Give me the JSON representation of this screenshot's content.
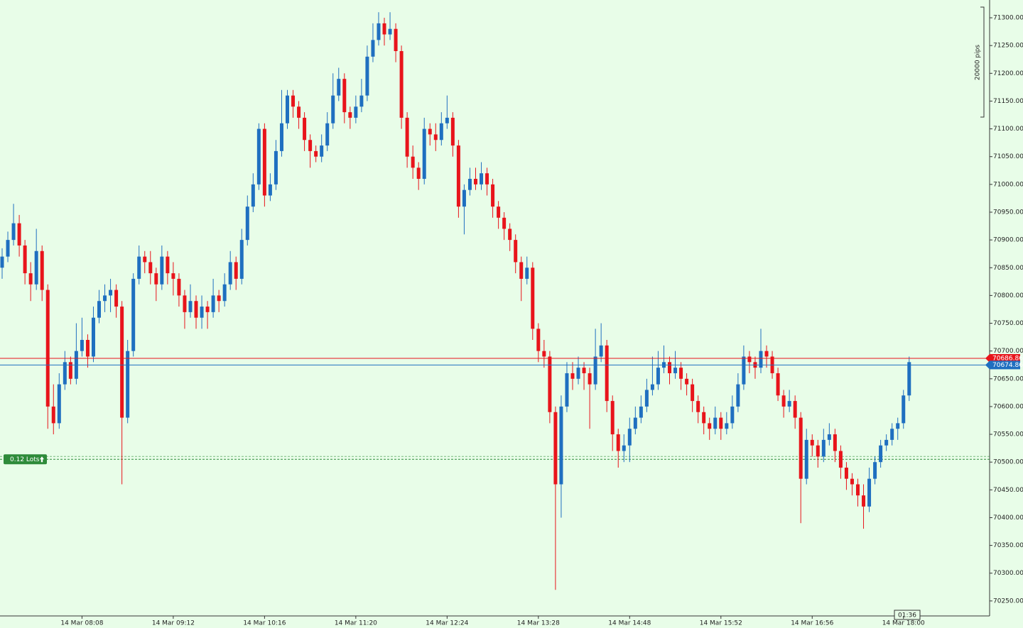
{
  "chart_data": {
    "type": "candlestick",
    "ylim": [
      70223,
      71332
    ],
    "yticks": [
      {
        "value": 70250,
        "label": "70250.00"
      },
      {
        "value": 70300,
        "label": "70300.00"
      },
      {
        "value": 70350,
        "label": "70350.00"
      },
      {
        "value": 70400,
        "label": "70400.00"
      },
      {
        "value": 70450,
        "label": "70450.00"
      },
      {
        "value": 70500,
        "label": "70500.00"
      },
      {
        "value": 70550,
        "label": "70550.00"
      },
      {
        "value": 70600,
        "label": "70600.00"
      },
      {
        "value": 70650,
        "label": "70650.00"
      },
      {
        "value": 70700,
        "label": "70700.00"
      },
      {
        "value": 70750,
        "label": "70750.00"
      },
      {
        "value": 70800,
        "label": "70800.00"
      },
      {
        "value": 70850,
        "label": "70850.00"
      },
      {
        "value": 70900,
        "label": "70900.00"
      },
      {
        "value": 70950,
        "label": "70950.00"
      },
      {
        "value": 71000,
        "label": "71000.00"
      },
      {
        "value": 71050,
        "label": "71050.00"
      },
      {
        "value": 71100,
        "label": "71100.00"
      },
      {
        "value": 71150,
        "label": "71150.00"
      },
      {
        "value": 71200,
        "label": "71200.00"
      },
      {
        "value": 71250,
        "label": "71250.00"
      },
      {
        "value": 71300,
        "label": "71300.00"
      }
    ],
    "up_color": "#1f6fc0",
    "down_color": "#e8141b",
    "categories": [
      null,
      null,
      null,
      null,
      null,
      null,
      null,
      null,
      null,
      null,
      null,
      null,
      null,
      null,
      "14 Mar 08:08",
      null,
      null,
      null,
      null,
      null,
      null,
      null,
      null,
      null,
      null,
      null,
      null,
      null,
      null,
      null,
      "14 Mar 09:12",
      null,
      null,
      null,
      null,
      null,
      null,
      null,
      null,
      null,
      null,
      null,
      null,
      null,
      null,
      null,
      "14 Mar 10:16",
      null,
      null,
      null,
      null,
      null,
      null,
      null,
      null,
      null,
      null,
      null,
      null,
      null,
      null,
      null,
      "14 Mar 11:20",
      null,
      null,
      null,
      null,
      null,
      null,
      null,
      null,
      null,
      null,
      null,
      null,
      null,
      null,
      null,
      "14 Mar 12:24",
      null,
      null,
      null,
      null,
      null,
      null,
      null,
      null,
      null,
      null,
      null,
      null,
      null,
      null,
      null,
      "14 Mar 13:28",
      null,
      null,
      null,
      null,
      null,
      null,
      null,
      null,
      null,
      null,
      null,
      null,
      null,
      null,
      null,
      "14 Mar 14:48",
      null,
      null,
      null,
      null,
      null,
      null,
      null,
      null,
      null,
      null,
      null,
      null,
      null,
      null,
      null,
      "14 Mar 15:52",
      null,
      null,
      null,
      null,
      null,
      null,
      null,
      null,
      null,
      null,
      null,
      null,
      null,
      null,
      null,
      "14 Mar 16:56",
      null,
      null,
      null,
      null,
      null,
      null,
      null,
      null,
      null,
      null,
      null,
      null,
      null,
      null,
      null,
      "14 Mar 18:00",
      null
    ],
    "ohlc": [
      [
        70850,
        70885,
        70830,
        70870
      ],
      [
        70870,
        70915,
        70860,
        70900
      ],
      [
        70900,
        70965,
        70890,
        70930
      ],
      [
        70930,
        70945,
        70870,
        70890
      ],
      [
        70890,
        70900,
        70820,
        70840
      ],
      [
        70840,
        70860,
        70790,
        70820
      ],
      [
        70820,
        70920,
        70810,
        70880
      ],
      [
        70880,
        70890,
        70790,
        70810
      ],
      [
        70810,
        70820,
        70560,
        70600
      ],
      [
        70600,
        70640,
        70550,
        70570
      ],
      [
        70570,
        70660,
        70560,
        70640
      ],
      [
        70640,
        70700,
        70630,
        70680
      ],
      [
        70680,
        70690,
        70640,
        70650
      ],
      [
        70650,
        70750,
        70640,
        70700
      ],
      [
        70700,
        70760,
        70690,
        70720
      ],
      [
        70720,
        70730,
        70670,
        70690
      ],
      [
        70690,
        70780,
        70680,
        70760
      ],
      [
        70760,
        70810,
        70750,
        70790
      ],
      [
        70790,
        70820,
        70770,
        70800
      ],
      [
        70800,
        70830,
        70770,
        70810
      ],
      [
        70810,
        70820,
        70760,
        70780
      ],
      [
        70780,
        70790,
        70460,
        70580
      ],
      [
        70580,
        70720,
        70570,
        70700
      ],
      [
        70700,
        70840,
        70690,
        70830
      ],
      [
        70830,
        70890,
        70820,
        70870
      ],
      [
        70870,
        70880,
        70840,
        70860
      ],
      [
        70860,
        70880,
        70820,
        70840
      ],
      [
        70840,
        70850,
        70790,
        70820
      ],
      [
        70820,
        70890,
        70810,
        70870
      ],
      [
        70870,
        70880,
        70820,
        70840
      ],
      [
        70840,
        70860,
        70800,
        70830
      ],
      [
        70830,
        70840,
        70780,
        70800
      ],
      [
        70800,
        70810,
        70740,
        70770
      ],
      [
        70770,
        70820,
        70760,
        70790
      ],
      [
        70790,
        70800,
        70740,
        70760
      ],
      [
        70760,
        70800,
        70740,
        70780
      ],
      [
        70780,
        70790,
        70740,
        70770
      ],
      [
        70770,
        70830,
        70760,
        70800
      ],
      [
        70800,
        70810,
        70770,
        70790
      ],
      [
        70790,
        70840,
        70780,
        70820
      ],
      [
        70820,
        70880,
        70810,
        70860
      ],
      [
        70860,
        70870,
        70810,
        70830
      ],
      [
        70830,
        70920,
        70820,
        70900
      ],
      [
        70900,
        70980,
        70890,
        70960
      ],
      [
        70960,
        71020,
        70950,
        71000
      ],
      [
        71000,
        71110,
        70990,
        71100
      ],
      [
        71100,
        71110,
        70960,
        70980
      ],
      [
        70980,
        71020,
        70970,
        71000
      ],
      [
        71000,
        71080,
        70990,
        71060
      ],
      [
        71060,
        71170,
        71050,
        71110
      ],
      [
        71110,
        71170,
        71100,
        71160
      ],
      [
        71160,
        71170,
        71120,
        71140
      ],
      [
        71140,
        71150,
        71100,
        71120
      ],
      [
        71120,
        71130,
        71060,
        71080
      ],
      [
        71080,
        71090,
        71030,
        71060
      ],
      [
        71060,
        71070,
        71040,
        71050
      ],
      [
        71050,
        71090,
        71040,
        71070
      ],
      [
        71070,
        71130,
        71060,
        71110
      ],
      [
        71110,
        71200,
        71100,
        71160
      ],
      [
        71160,
        71210,
        71150,
        71190
      ],
      [
        71190,
        71200,
        71110,
        71130
      ],
      [
        71130,
        71140,
        71100,
        71120
      ],
      [
        71120,
        71160,
        71110,
        71140
      ],
      [
        71140,
        71190,
        71130,
        71160
      ],
      [
        71160,
        71250,
        71150,
        71230
      ],
      [
        71230,
        71290,
        71220,
        71260
      ],
      [
        71260,
        71310,
        71250,
        71290
      ],
      [
        71290,
        71300,
        71250,
        71270
      ],
      [
        71270,
        71310,
        71260,
        71280
      ],
      [
        71280,
        71290,
        71220,
        71240
      ],
      [
        71240,
        71250,
        71100,
        71120
      ],
      [
        71120,
        71130,
        71030,
        71050
      ],
      [
        71050,
        71070,
        71010,
        71030
      ],
      [
        71030,
        71040,
        70990,
        71010
      ],
      [
        71010,
        71120,
        71000,
        71100
      ],
      [
        71100,
        71110,
        71070,
        71090
      ],
      [
        71090,
        71110,
        71060,
        71080
      ],
      [
        71080,
        71130,
        71070,
        71110
      ],
      [
        71110,
        71160,
        71100,
        71120
      ],
      [
        71120,
        71130,
        71050,
        71070
      ],
      [
        71070,
        71080,
        70940,
        70960
      ],
      [
        70960,
        71000,
        70910,
        70990
      ],
      [
        70990,
        71030,
        70980,
        71010
      ],
      [
        71010,
        71030,
        70990,
        71000
      ],
      [
        71000,
        71040,
        70990,
        71020
      ],
      [
        71020,
        71030,
        70980,
        71000
      ],
      [
        71000,
        71010,
        70940,
        70960
      ],
      [
        70960,
        70970,
        70920,
        70940
      ],
      [
        70940,
        70950,
        70900,
        70920
      ],
      [
        70920,
        70930,
        70880,
        70900
      ],
      [
        70900,
        70910,
        70840,
        70860
      ],
      [
        70860,
        70870,
        70790,
        70830
      ],
      [
        70830,
        70870,
        70820,
        70850
      ],
      [
        70850,
        70860,
        70720,
        70740
      ],
      [
        70740,
        70750,
        70680,
        70700
      ],
      [
        70700,
        70720,
        70670,
        70690
      ],
      [
        70690,
        70700,
        70570,
        70590
      ],
      [
        70590,
        70600,
        70270,
        70460
      ],
      [
        70460,
        70620,
        70400,
        70600
      ],
      [
        70600,
        70680,
        70590,
        70660
      ],
      [
        70660,
        70680,
        70630,
        70650
      ],
      [
        70650,
        70690,
        70640,
        70670
      ],
      [
        70670,
        70680,
        70630,
        70660
      ],
      [
        70660,
        70670,
        70560,
        70640
      ],
      [
        70640,
        70740,
        70630,
        70690
      ],
      [
        70690,
        70750,
        70680,
        70710
      ],
      [
        70710,
        70720,
        70590,
        70610
      ],
      [
        70610,
        70620,
        70520,
        70550
      ],
      [
        70550,
        70560,
        70490,
        70520
      ],
      [
        70520,
        70550,
        70500,
        70530
      ],
      [
        70530,
        70580,
        70500,
        70560
      ],
      [
        70560,
        70600,
        70550,
        70580
      ],
      [
        70580,
        70620,
        70570,
        70600
      ],
      [
        70600,
        70650,
        70590,
        70630
      ],
      [
        70630,
        70690,
        70620,
        70640
      ],
      [
        70640,
        70700,
        70630,
        70670
      ],
      [
        70670,
        70710,
        70660,
        70680
      ],
      [
        70680,
        70690,
        70640,
        70660
      ],
      [
        70660,
        70700,
        70650,
        70670
      ],
      [
        70670,
        70680,
        70630,
        70650
      ],
      [
        70650,
        70660,
        70620,
        70640
      ],
      [
        70640,
        70650,
        70590,
        70610
      ],
      [
        70610,
        70620,
        70570,
        70590
      ],
      [
        70590,
        70600,
        70550,
        70570
      ],
      [
        70570,
        70580,
        70540,
        70560
      ],
      [
        70560,
        70600,
        70550,
        70580
      ],
      [
        70580,
        70590,
        70540,
        70560
      ],
      [
        70560,
        70590,
        70550,
        70570
      ],
      [
        70570,
        70620,
        70560,
        70600
      ],
      [
        70600,
        70660,
        70590,
        70640
      ],
      [
        70640,
        70710,
        70630,
        70690
      ],
      [
        70690,
        70700,
        70660,
        70680
      ],
      [
        70680,
        70690,
        70650,
        70670
      ],
      [
        70670,
        70740,
        70660,
        70700
      ],
      [
        70700,
        70710,
        70670,
        70690
      ],
      [
        70690,
        70700,
        70650,
        70660
      ],
      [
        70660,
        70670,
        70610,
        70620
      ],
      [
        70620,
        70630,
        70580,
        70600
      ],
      [
        70600,
        70630,
        70590,
        70610
      ],
      [
        70610,
        70620,
        70560,
        70580
      ],
      [
        70580,
        70590,
        70390,
        70470
      ],
      [
        70470,
        70560,
        70460,
        70540
      ],
      [
        70540,
        70550,
        70510,
        70530
      ],
      [
        70530,
        70540,
        70490,
        70510
      ],
      [
        70510,
        70560,
        70500,
        70540
      ],
      [
        70540,
        70570,
        70530,
        70550
      ],
      [
        70550,
        70560,
        70500,
        70520
      ],
      [
        70520,
        70530,
        70470,
        70490
      ],
      [
        70490,
        70500,
        70450,
        70470
      ],
      [
        70470,
        70480,
        70440,
        70460
      ],
      [
        70460,
        70470,
        70420,
        70440
      ],
      [
        70440,
        70460,
        70380,
        70420
      ],
      [
        70420,
        70490,
        70410,
        70470
      ],
      [
        70470,
        70510,
        70460,
        70500
      ],
      [
        70500,
        70540,
        70490,
        70530
      ],
      [
        70530,
        70550,
        70520,
        70540
      ],
      [
        70540,
        70570,
        70530,
        70560
      ],
      [
        70560,
        70580,
        70540,
        70570
      ],
      [
        70570,
        70630,
        70560,
        70620
      ],
      [
        70620,
        70690,
        70610,
        70680
      ]
    ],
    "price_lines": [
      {
        "value": 70686.86,
        "color": "#e8141b"
      },
      {
        "value": 70674.86,
        "color": "#1f6fc0"
      }
    ],
    "order_line": {
      "label": "0.12 Lots",
      "value": 70505,
      "color": "#2e8b3a"
    },
    "scale_label": "20000 pips",
    "timer": "01:36"
  }
}
